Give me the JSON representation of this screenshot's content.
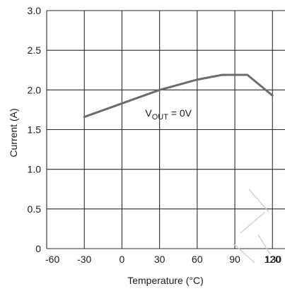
{
  "chart_data": {
    "type": "line",
    "title": "",
    "xlabel": "Temperature (°C)",
    "ylabel": "Current (A)",
    "xlim": [
      -60,
      130
    ],
    "ylim": [
      0,
      3.0
    ],
    "x_ticks": [
      -60,
      -30,
      0,
      30,
      60,
      90,
      120,
      130
    ],
    "x_tick_labels": [
      "-60",
      "-30",
      "0",
      "30",
      "60",
      "90",
      "120",
      "130"
    ],
    "x_gridlines": [
      -60,
      -30,
      0,
      30,
      60,
      90,
      120
    ],
    "y_ticks": [
      0,
      0.5,
      1.0,
      1.5,
      2.0,
      2.5,
      3.0
    ],
    "y_tick_labels": [
      "0",
      "0.5",
      "1.0",
      "1.5",
      "2.0",
      "2.5",
      "3.0"
    ],
    "grid": true,
    "series": [
      {
        "x": [
          -30,
          0,
          30,
          60,
          80,
          100,
          120
        ],
        "values": [
          1.66,
          1.83,
          2.0,
          2.13,
          2.19,
          2.19,
          1.93
        ]
      }
    ],
    "annotation": {
      "main": "V",
      "subscript": "OUT",
      "rest": " = 0V",
      "x": 40,
      "y": 1.7
    },
    "colors": {
      "line": "#6b6b6b",
      "grid": "#2a2a2a",
      "text": "#1a1a1a"
    }
  }
}
